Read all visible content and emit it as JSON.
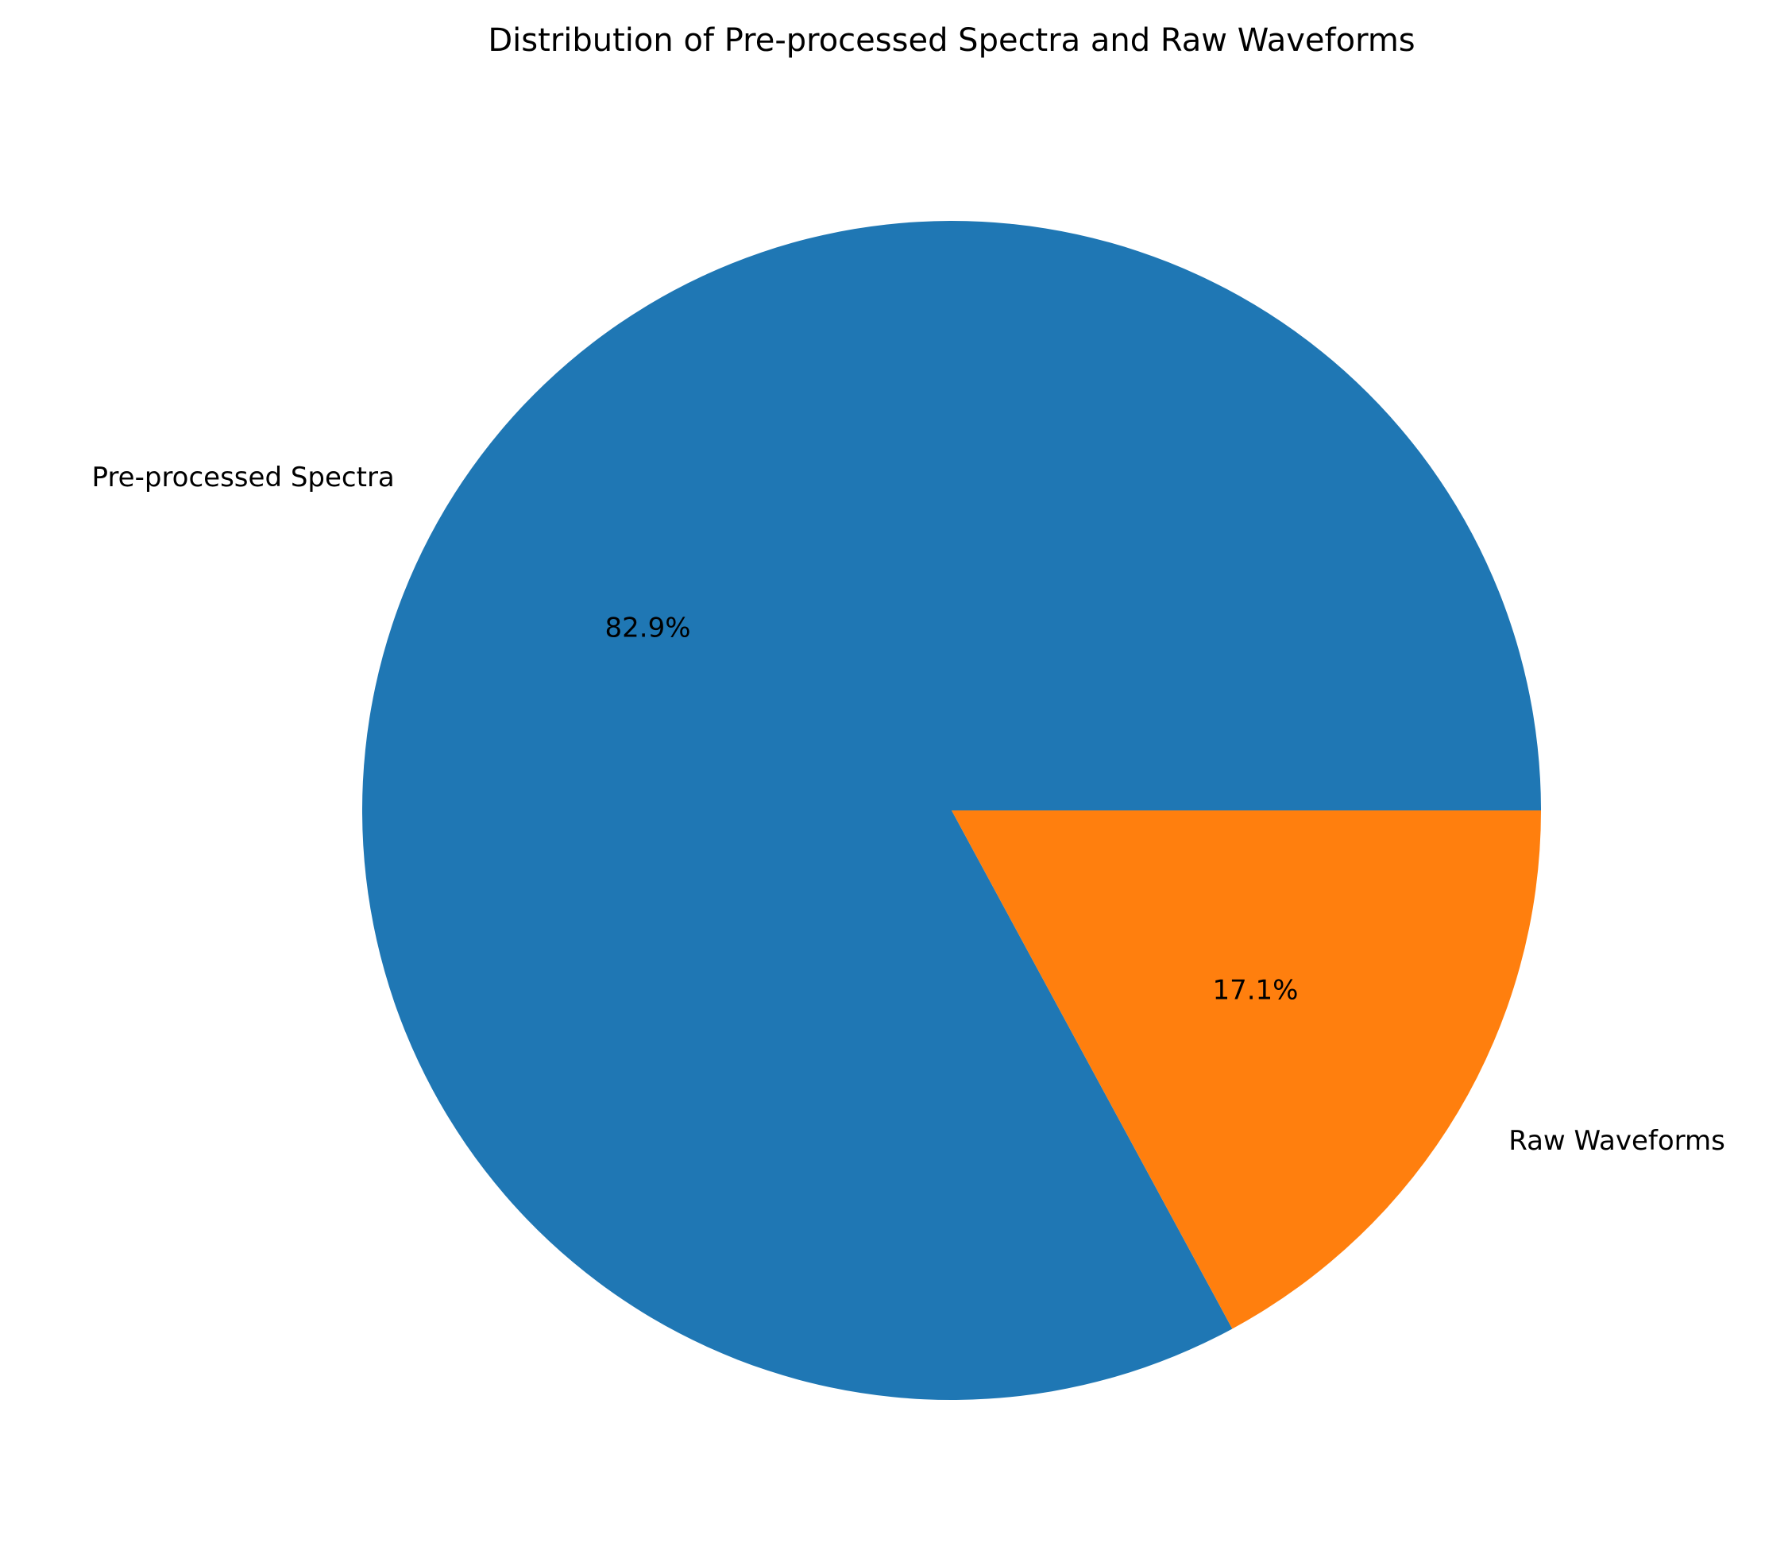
{
  "chart_data": {
    "type": "pie",
    "title": "Distribution of Pre-processed Spectra and Raw Waveforms",
    "slices": [
      {
        "label": "Pre-processed Spectra",
        "value": 82.9,
        "pct_label": "82.9%",
        "color": "#1f77b4"
      },
      {
        "label": "Raw Waveforms",
        "value": 17.1,
        "pct_label": "17.1%",
        "color": "#ff7f0e"
      }
    ],
    "start_angle": "0 degrees (3 o'clock)",
    "direction": "counterclockwise",
    "legend": "none"
  }
}
